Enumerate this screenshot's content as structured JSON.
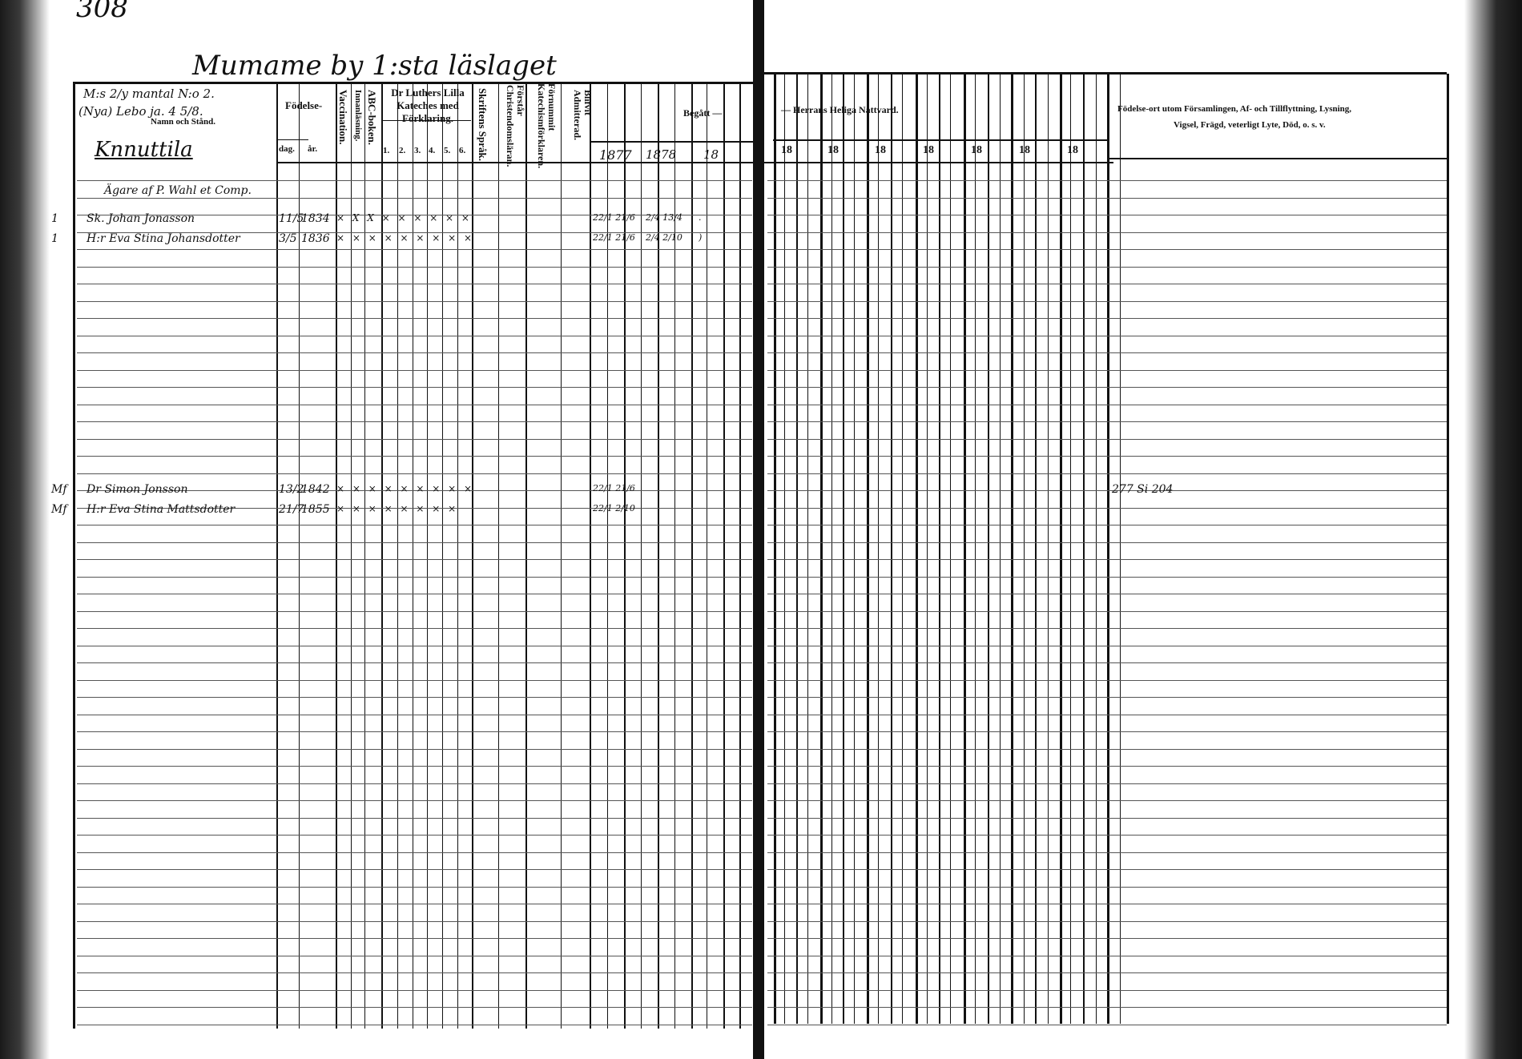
{
  "page_number": "308",
  "title": "Mumame by 1:sta läslaget",
  "left_page": {
    "name_header": {
      "note_line1": "M:s 2/y mantal N:o 2.",
      "note_line2": "(Nya) Lebo ja. 4 5/8.",
      "label": "Namn och Stånd.",
      "village": "Knnuttila"
    },
    "columns": {
      "birth": "Födelse-",
      "day": "dag.",
      "year": "år.",
      "vaccination": "Vaccination.",
      "reading": "Innanläsning.",
      "abc": "ABC-boken.",
      "catechism": "Dr Luthers Lilla Kateches med Förklaring.",
      "catechism_parts": [
        "1.",
        "2.",
        "3.",
        "4.",
        "5.",
        "6."
      ],
      "scripture": "Skriftens Språk.",
      "understands": "Förstår Christendomsläran.",
      "catechism_expl": "Förnummit Katechismförklaren.",
      "admitted": "Blifvit Admitterad.",
      "communion_left": "Begått —",
      "years": [
        "1877",
        "1878",
        "18"
      ]
    }
  },
  "right_page": {
    "communion_right": "— Herrans Heliga Nattvard.",
    "years": [
      "18",
      "18",
      "18",
      "18",
      "18",
      "18",
      "18"
    ],
    "remarks_header_line1": "Födelse-ort utom Församlingen, Af- och Tillflyttning, Lysning,",
    "remarks_header_line2": "Vigsel, Frägd, veterligt Lyte, Död, o. s. v."
  },
  "entries": [
    {
      "mark": "",
      "name": "Ägare af P. Wahl et Comp.",
      "day": "",
      "year": "",
      "marks": "",
      "communion": [
        "",
        "",
        ""
      ],
      "remark": ""
    },
    {
      "mark": "1",
      "name": "Sk. Johan Jonasson",
      "day": "11/5",
      "year": "1834",
      "marks": "× X X × × × × × ×",
      "communion": [
        "22/1 21/6",
        "2/4 13/4",
        "."
      ],
      "remark": ""
    },
    {
      "mark": "1",
      "name": "H:r Eva Stina Johansdotter",
      "day": "3/5",
      "year": "1836",
      "marks": "× × × × × × × × ×",
      "communion": [
        "22/1 21/6",
        "2/4 2/10",
        ")"
      ],
      "remark": ""
    },
    {
      "mark": "Mf",
      "name": "Dr Simon Jonsson",
      "day": "13/2",
      "year": "1842",
      "marks": "× × × × × × × × ×",
      "communion": [
        "22/1 21/6",
        "",
        ""
      ],
      "remark": "277 Si 204"
    },
    {
      "mark": "Mf",
      "name": "H:r Eva Stina Mattsdotter",
      "day": "21/7",
      "year": "1855",
      "marks": "× × × × × × × ×",
      "communion": [
        "22/1 2/10",
        "",
        ""
      ],
      "remark": ""
    }
  ]
}
